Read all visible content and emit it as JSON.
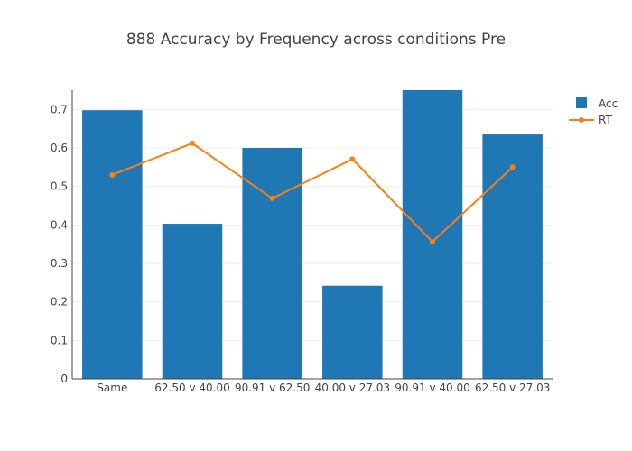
{
  "chart_data": {
    "type": "bar",
    "title": "888 Accuracy by Frequency across conditions Pre",
    "categories": [
      "Same",
      "62.50 v 40.00",
      "90.91 v 62.50",
      "40.00 v 27.03",
      "90.91 v 40.00",
      "62.50 v 27.03"
    ],
    "series": [
      {
        "name": "Acc",
        "kind": "bar",
        "color": "#1f77b4",
        "values": [
          0.698,
          0.403,
          0.6,
          0.242,
          0.75,
          0.635
        ]
      },
      {
        "name": "RT",
        "kind": "line",
        "color": "#ff7f0e",
        "values": [
          0.53,
          0.612,
          0.469,
          0.571,
          0.356,
          0.55
        ]
      }
    ],
    "ylim": [
      0,
      0.75
    ],
    "yticks": [
      0,
      0.1,
      0.2,
      0.3,
      0.4,
      0.5,
      0.6,
      0.7
    ],
    "ytick_labels": [
      "0",
      "0.1",
      "0.2",
      "0.3",
      "0.4",
      "0.5",
      "0.6",
      "0.7"
    ],
    "xlabel": "",
    "ylabel": "",
    "grid": true,
    "legend_position": "top-right"
  }
}
